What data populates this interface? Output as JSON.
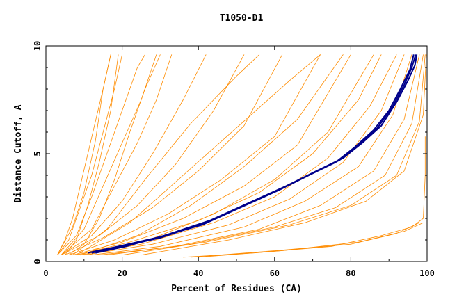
{
  "chart_data": {
    "type": "line",
    "title": "T1050-D1",
    "xlabel": "Percent of Residues (CA)",
    "ylabel": "Distance Cutoff, A",
    "xlim": [
      0,
      100
    ],
    "ylim": [
      0,
      10
    ],
    "x_ticks": [
      0,
      20,
      40,
      60,
      80,
      100
    ],
    "y_ticks": [
      0,
      5,
      10
    ],
    "grid": false,
    "colors": {
      "models": "#ff8c00",
      "highlight": "#00008b",
      "axes": "#000000"
    },
    "series": [
      {
        "group": "models",
        "points": [
          [
            3,
            0.3
          ],
          [
            5,
            1
          ],
          [
            7,
            2
          ],
          [
            9,
            3.5
          ],
          [
            11,
            5
          ],
          [
            13,
            6.5
          ],
          [
            15,
            8
          ],
          [
            17,
            9.6
          ]
        ]
      },
      {
        "group": "models",
        "points": [
          [
            3,
            0.3
          ],
          [
            6,
            1
          ],
          [
            9,
            2.5
          ],
          [
            12,
            4
          ],
          [
            15,
            6
          ],
          [
            18,
            8
          ],
          [
            20,
            9.6
          ]
        ]
      },
      {
        "group": "models",
        "points": [
          [
            3,
            0.3
          ],
          [
            8,
            1.2
          ],
          [
            12,
            3
          ],
          [
            16,
            5
          ],
          [
            20,
            7
          ],
          [
            24,
            9
          ],
          [
            26,
            9.6
          ]
        ]
      },
      {
        "group": "models",
        "points": [
          [
            4,
            0.3
          ],
          [
            10,
            1.5
          ],
          [
            15,
            3.5
          ],
          [
            20,
            5.5
          ],
          [
            25,
            7.5
          ],
          [
            29,
            9.6
          ]
        ]
      },
      {
        "group": "models",
        "points": [
          [
            4,
            0.3
          ],
          [
            12,
            1.5
          ],
          [
            18,
            3.5
          ],
          [
            24,
            5.5
          ],
          [
            29,
            7.5
          ],
          [
            33,
            9.6
          ]
        ]
      },
      {
        "group": "models",
        "points": [
          [
            4,
            0.3
          ],
          [
            12,
            1.2
          ],
          [
            20,
            2.8
          ],
          [
            28,
            5
          ],
          [
            36,
            7.5
          ],
          [
            42,
            9.6
          ]
        ]
      },
      {
        "group": "models",
        "points": [
          [
            4,
            0.3
          ],
          [
            14,
            1.2
          ],
          [
            24,
            2.6
          ],
          [
            34,
            4.5
          ],
          [
            44,
            7
          ],
          [
            52,
            9.6
          ]
        ]
      },
      {
        "group": "models",
        "points": [
          [
            5,
            0.3
          ],
          [
            15,
            1.1
          ],
          [
            28,
            2.5
          ],
          [
            40,
            4.2
          ],
          [
            52,
            6.3
          ],
          [
            62,
            9.6
          ]
        ]
      },
      {
        "group": "models",
        "points": [
          [
            6,
            0.3
          ],
          [
            18,
            1
          ],
          [
            32,
            2.2
          ],
          [
            46,
            3.8
          ],
          [
            60,
            5.8
          ],
          [
            72,
            9.6
          ]
        ]
      },
      {
        "group": "models",
        "points": [
          [
            7,
            0.3
          ],
          [
            20,
            0.9
          ],
          [
            36,
            2
          ],
          [
            52,
            3.5
          ],
          [
            66,
            5.4
          ],
          [
            80,
            9.6
          ]
        ]
      },
      {
        "group": "models",
        "points": [
          [
            8,
            0.3
          ],
          [
            22,
            0.9
          ],
          [
            40,
            1.9
          ],
          [
            56,
            3.2
          ],
          [
            70,
            5
          ],
          [
            82,
            7.5
          ],
          [
            88,
            9.6
          ]
        ]
      },
      {
        "group": "models",
        "points": [
          [
            9,
            0.3
          ],
          [
            25,
            0.8
          ],
          [
            44,
            1.8
          ],
          [
            60,
            3
          ],
          [
            74,
            4.8
          ],
          [
            85,
            7.2
          ],
          [
            92,
            9.6
          ]
        ]
      },
      {
        "group": "models",
        "points": [
          [
            10,
            0.3
          ],
          [
            28,
            0.8
          ],
          [
            48,
            1.7
          ],
          [
            64,
            2.9
          ],
          [
            78,
            4.6
          ],
          [
            88,
            7
          ],
          [
            94,
            9.6
          ]
        ]
      },
      {
        "group": "models",
        "points": [
          [
            12,
            0.3
          ],
          [
            30,
            0.7
          ],
          [
            52,
            1.6
          ],
          [
            68,
            2.8
          ],
          [
            82,
            4.4
          ],
          [
            91,
            6.8
          ],
          [
            96,
            9.6
          ]
        ]
      },
      {
        "group": "models",
        "points": [
          [
            14,
            0.3
          ],
          [
            34,
            0.7
          ],
          [
            56,
            1.5
          ],
          [
            72,
            2.6
          ],
          [
            86,
            4.2
          ],
          [
            94,
            6.6
          ],
          [
            98,
            9.6
          ]
        ]
      },
      {
        "group": "models",
        "points": [
          [
            16,
            0.3
          ],
          [
            38,
            0.8
          ],
          [
            60,
            1.6
          ],
          [
            76,
            2.5
          ],
          [
            89,
            4
          ],
          [
            96,
            6.4
          ],
          [
            99,
            9.6
          ]
        ]
      },
      {
        "group": "models",
        "points": [
          [
            20,
            0.3
          ],
          [
            42,
            0.9
          ],
          [
            64,
            1.7
          ],
          [
            80,
            2.6
          ],
          [
            92,
            4
          ],
          [
            98,
            6.5
          ],
          [
            99.5,
            9.6
          ]
        ]
      },
      {
        "group": "models",
        "points": [
          [
            25,
            0.3
          ],
          [
            48,
            1
          ],
          [
            68,
            1.8
          ],
          [
            84,
            2.8
          ],
          [
            94,
            4.2
          ],
          [
            99,
            6.8
          ],
          [
            99.8,
            9.6
          ]
        ]
      },
      {
        "group": "models",
        "points": [
          [
            6,
            0.3
          ],
          [
            10,
            0.8
          ],
          [
            14,
            2
          ],
          [
            18,
            3.8
          ],
          [
            22,
            6
          ],
          [
            26,
            8
          ],
          [
            30,
            9.6
          ]
        ]
      },
      {
        "group": "models",
        "points": [
          [
            5,
            0.3
          ],
          [
            8,
            1
          ],
          [
            11,
            2.6
          ],
          [
            14,
            4.6
          ],
          [
            17,
            7
          ],
          [
            19,
            9.6
          ]
        ]
      },
      {
        "group": "models",
        "points": [
          [
            7,
            0.3
          ],
          [
            16,
            1.5
          ],
          [
            26,
            3.8
          ],
          [
            38,
            6.4
          ],
          [
            50,
            8.6
          ],
          [
            56,
            9.6
          ]
        ]
      },
      {
        "group": "models",
        "points": [
          [
            8,
            0.3
          ],
          [
            22,
            1.8
          ],
          [
            36,
            4
          ],
          [
            50,
            6.2
          ],
          [
            64,
            8.4
          ],
          [
            72,
            9.6
          ]
        ]
      },
      {
        "group": "models",
        "points": [
          [
            36,
            0.2
          ],
          [
            55,
            0.4
          ],
          [
            75,
            0.7
          ],
          [
            88,
            1.2
          ],
          [
            96,
            1.6
          ],
          [
            99,
            2
          ],
          [
            99.5,
            4
          ],
          [
            99.5,
            5.8
          ]
        ]
      },
      {
        "group": "models",
        "points": [
          [
            38,
            0.2
          ],
          [
            60,
            0.5
          ],
          [
            80,
            0.8
          ],
          [
            92,
            1.3
          ],
          [
            98,
            1.8
          ]
        ]
      },
      {
        "group": "models",
        "points": [
          [
            40,
            0.2
          ],
          [
            62,
            0.5
          ],
          [
            82,
            0.9
          ],
          [
            94,
            1.4
          ],
          [
            99,
            1.8
          ]
        ]
      },
      {
        "group": "models",
        "points": [
          [
            3,
            0.3
          ],
          [
            7,
            1.6
          ],
          [
            10,
            3.2
          ],
          [
            13,
            5.6
          ],
          [
            15,
            8
          ],
          [
            17,
            9.6
          ]
        ]
      },
      {
        "group": "models",
        "points": [
          [
            9,
            0.3
          ],
          [
            24,
            1.2
          ],
          [
            38,
            2.6
          ],
          [
            52,
            4.4
          ],
          [
            66,
            6.6
          ],
          [
            78,
            9.6
          ]
        ]
      },
      {
        "group": "models",
        "points": [
          [
            11,
            0.3
          ],
          [
            27,
            1
          ],
          [
            44,
            2.2
          ],
          [
            60,
            3.8
          ],
          [
            74,
            6
          ],
          [
            86,
            9.6
          ]
        ]
      },
      {
        "group": "highlight",
        "points": [
          [
            12,
            0.4
          ],
          [
            20,
            0.7
          ],
          [
            30,
            1.1
          ],
          [
            42,
            1.8
          ],
          [
            52,
            2.6
          ],
          [
            62,
            3.4
          ],
          [
            70,
            4.1
          ],
          [
            77,
            4.7
          ],
          [
            82,
            5.4
          ],
          [
            87,
            6.2
          ],
          [
            91,
            7.2
          ],
          [
            94,
            8.2
          ],
          [
            96,
            9
          ],
          [
            97,
            9.6
          ]
        ]
      },
      {
        "group": "highlight",
        "points": [
          [
            11,
            0.4
          ],
          [
            19,
            0.7
          ],
          [
            29,
            1.1
          ],
          [
            41,
            1.7
          ],
          [
            51,
            2.5
          ],
          [
            61,
            3.3
          ],
          [
            69,
            4
          ],
          [
            76,
            4.6
          ],
          [
            81,
            5.3
          ],
          [
            86,
            6.1
          ],
          [
            90,
            7
          ],
          [
            93,
            8
          ],
          [
            95.5,
            8.9
          ],
          [
            96.5,
            9.6
          ]
        ]
      },
      {
        "group": "highlight",
        "points": [
          [
            13,
            0.4
          ],
          [
            21,
            0.7
          ],
          [
            31,
            1.2
          ],
          [
            43,
            1.9
          ],
          [
            53,
            2.7
          ],
          [
            63,
            3.5
          ],
          [
            71,
            4.2
          ],
          [
            78,
            4.8
          ],
          [
            83,
            5.5
          ],
          [
            88,
            6.3
          ],
          [
            92,
            7.4
          ],
          [
            95,
            8.4
          ],
          [
            96.8,
            9.1
          ],
          [
            97.3,
            9.6
          ]
        ]
      }
    ]
  }
}
